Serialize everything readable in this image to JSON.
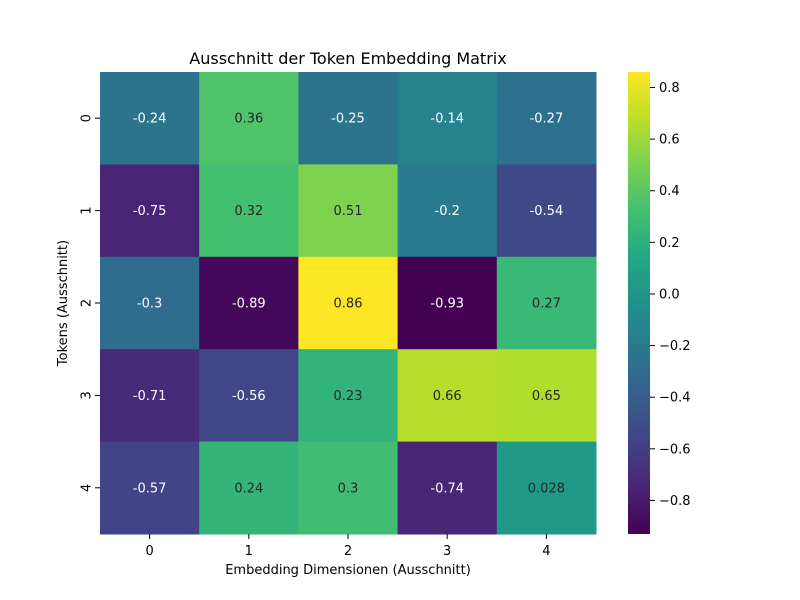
{
  "chart_data": {
    "type": "heatmap",
    "title": "Ausschnitt der Token Embedding Matrix",
    "xlabel": "Embedding Dimensionen (Ausschnitt)",
    "ylabel": "Tokens (Ausschnitt)",
    "x_categories": [
      "0",
      "1",
      "2",
      "3",
      "4"
    ],
    "y_categories": [
      "0",
      "1",
      "2",
      "3",
      "4"
    ],
    "values": [
      [
        -0.24,
        0.36,
        -0.25,
        -0.14,
        -0.27
      ],
      [
        -0.75,
        0.32,
        0.51,
        -0.2,
        -0.54
      ],
      [
        -0.3,
        -0.89,
        0.86,
        -0.93,
        0.27
      ],
      [
        -0.71,
        -0.56,
        0.23,
        0.66,
        0.65
      ],
      [
        -0.57,
        0.24,
        0.3,
        -0.74,
        0.028
      ]
    ],
    "value_labels": [
      [
        "-0.24",
        "0.36",
        "-0.25",
        "-0.14",
        "-0.27"
      ],
      [
        "-0.75",
        "0.32",
        "0.51",
        "-0.2",
        "-0.54"
      ],
      [
        "-0.3",
        "-0.89",
        "0.86",
        "-0.93",
        "0.27"
      ],
      [
        "-0.71",
        "-0.56",
        "0.23",
        "0.66",
        "0.65"
      ],
      [
        "-0.57",
        "0.24",
        "0.3",
        "-0.74",
        "0.028"
      ]
    ],
    "colormap": "viridis",
    "colorbar": {
      "range": [
        -0.93,
        0.86
      ],
      "ticks": [
        -0.8,
        -0.6,
        -0.4,
        -0.2,
        0.0,
        0.2,
        0.4,
        0.6,
        0.8
      ],
      "tick_labels": [
        "−0.8",
        "−0.6",
        "−0.4",
        "−0.2",
        "0.0",
        "0.2",
        "0.4",
        "0.6",
        "0.8"
      ]
    },
    "grid": false
  }
}
